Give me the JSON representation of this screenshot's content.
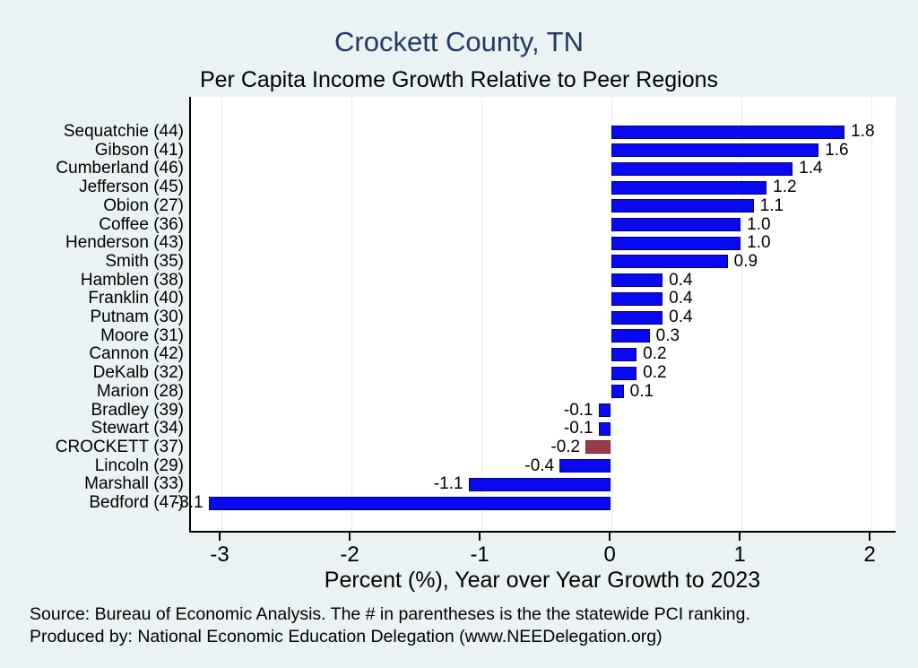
{
  "page": {
    "background_color": "#eaf2f3",
    "plot_background_color": "#ffffff"
  },
  "header": {
    "title": "Crockett County, TN",
    "title_color": "#1e3a63",
    "subtitle": "Per Capita Income Growth Relative to Peer Regions"
  },
  "chart_data": {
    "type": "bar",
    "orientation": "horizontal",
    "title": "Crockett County, TN",
    "subtitle": "Per Capita Income Growth Relative to Peer Regions",
    "xlabel": "Percent (%), Year over Year Growth to 2023",
    "ylabel": "",
    "xlim": [
      -3.235,
      2.185
    ],
    "xticks": [
      -3,
      -2,
      -1,
      0,
      1,
      2
    ],
    "grid": true,
    "legend": "none",
    "categories": [
      "Sequatchie (44)",
      "Gibson (41)",
      "Cumberland (46)",
      "Jefferson (45)",
      "Obion (27)",
      "Coffee (36)",
      "Henderson (43)",
      "Smith (35)",
      "Hamblen (38)",
      "Franklin (40)",
      "Putnam (30)",
      "Moore (31)",
      "Cannon (42)",
      "DeKalb (32)",
      "Marion (28)",
      "Bradley (39)",
      "Stewart (34)",
      "CROCKETT (37)",
      "Lincoln (29)",
      "Marshall (33)",
      "Bedford (47)"
    ],
    "values": [
      1.8,
      1.6,
      1.4,
      1.2,
      1.1,
      1.0,
      1.0,
      0.9,
      0.4,
      0.4,
      0.4,
      0.3,
      0.2,
      0.2,
      0.1,
      -0.1,
      -0.1,
      -0.2,
      -0.4,
      -1.1,
      -3.1
    ],
    "value_label_decimals": 1,
    "highlight_category": "CROCKETT (37)",
    "highlight_index": 17,
    "bar_color": "#0a0af0",
    "bar_border_color": "#000080",
    "highlight_color": "#9a3a45",
    "highlight_border_color": "#6e2731",
    "gridline_color": "#e2ecee",
    "axis_color": "#000000",
    "text_color": "#000000"
  },
  "footer": {
    "source": "Source: Bureau of Economic Analysis. The # in parentheses is the the statewide PCI ranking.",
    "produced_by": "Produced by: National Economic Education Delegation (www.NEEDelegation.org)"
  }
}
